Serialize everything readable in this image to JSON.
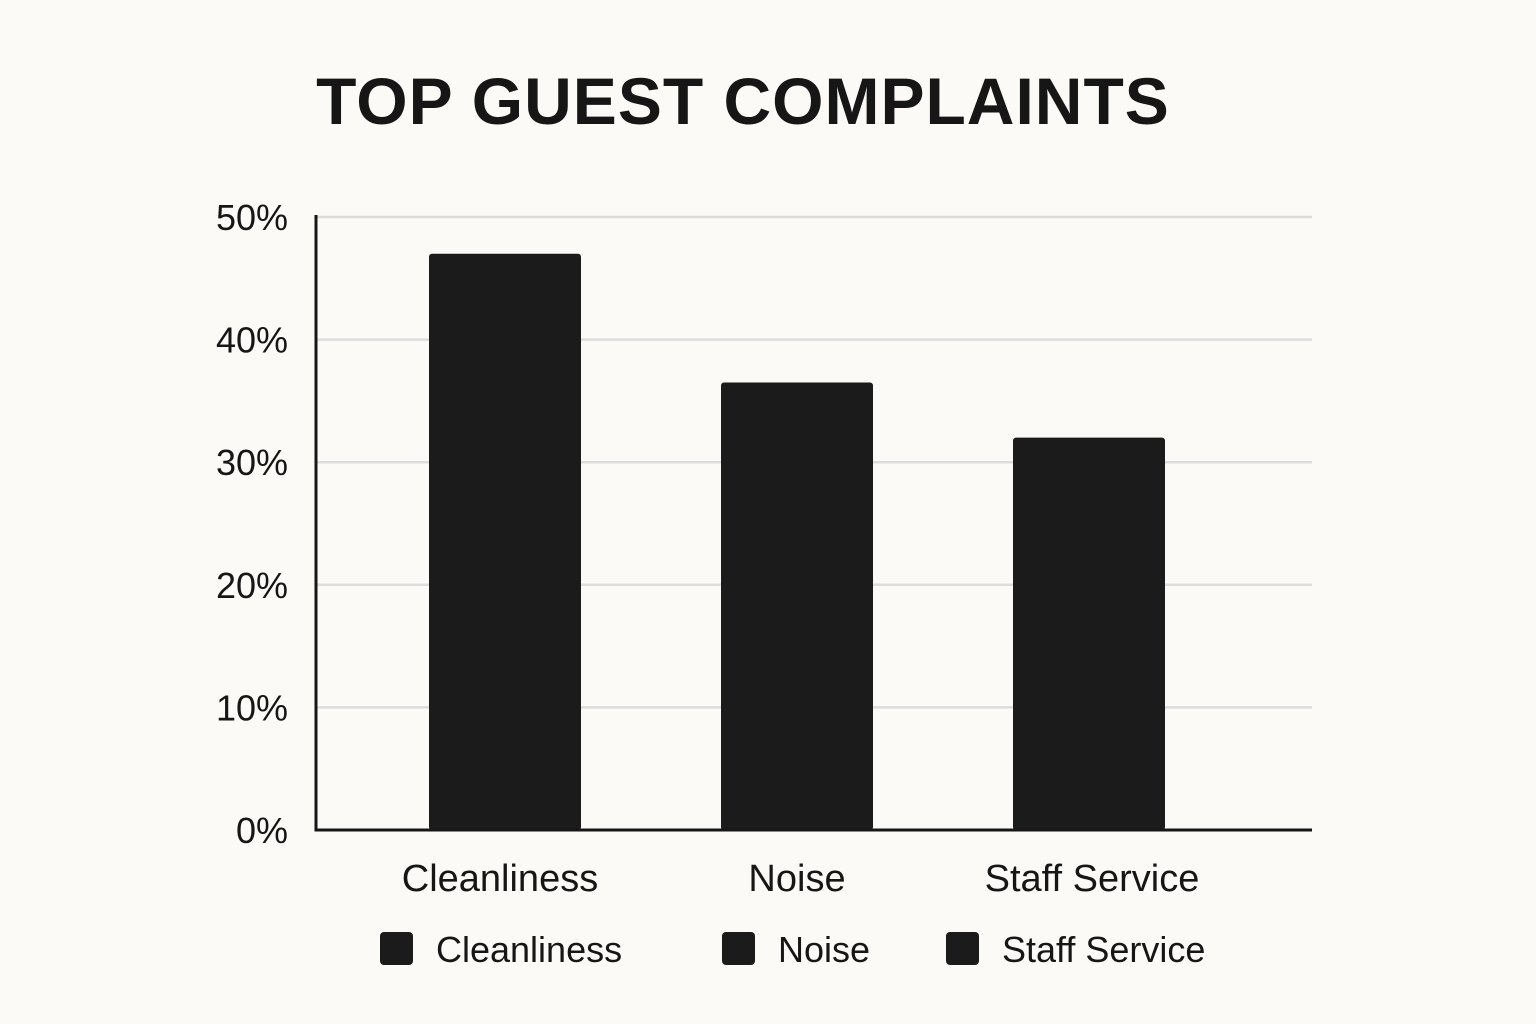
{
  "chart_data": {
    "type": "bar",
    "title": "TOP GUEST COMPLAINTS",
    "xlabel": "",
    "ylabel": "",
    "categories": [
      "Cleanliness",
      "Noise",
      "Staff Service"
    ],
    "series": [
      {
        "values": [
          47,
          36.5,
          32
        ]
      }
    ],
    "ylim": [
      0,
      50
    ],
    "y_ticks": [
      "0%",
      "10%",
      "20%",
      "30%",
      "40%",
      "50%"
    ],
    "y_tick_values": [
      0,
      10,
      20,
      30,
      40,
      50
    ],
    "grid": true,
    "legend": {
      "placement": "bottom",
      "entries": [
        "Cleanliness",
        "Noise",
        "Staff Service"
      ]
    },
    "colors": {
      "bar": "#1b1b1b",
      "grid": "#dcdcdc",
      "axis": "#161616",
      "background": "#fbfaf6"
    }
  }
}
